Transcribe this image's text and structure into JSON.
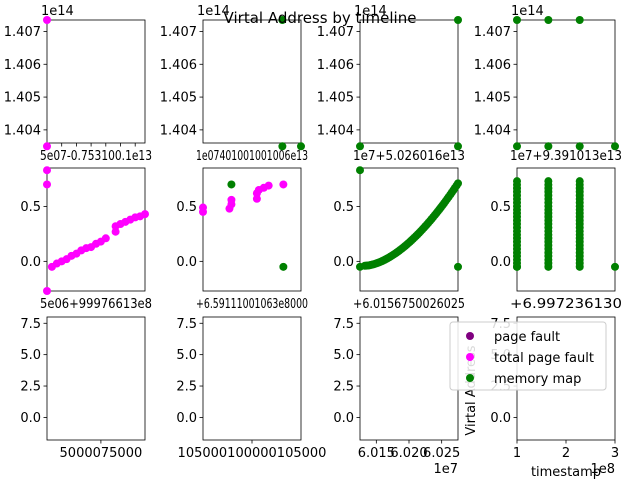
{
  "figure": {
    "suptitle": "Virtal Address by timeline",
    "colors": {
      "page_fault": "#800080",
      "total_page_fault": "#ff00ff",
      "memory_map": "#008000"
    }
  },
  "chart_data": {
    "type": "scatter",
    "grid": false,
    "legend": {
      "placement": "over-row-3-column-4",
      "entries": [
        {
          "label": "page fault",
          "color": "#800080"
        },
        {
          "label": "total page fault",
          "color": "#ff00ff"
        },
        {
          "label": "memory map",
          "color": "#008000"
        }
      ]
    },
    "panels": [
      {
        "row": 0,
        "col": 0,
        "ylim": [
          1.4036,
          1.40735
        ],
        "yticks": [
          1.404,
          1.405,
          1.406,
          1.407
        ],
        "yticklabels": [
          "1.404",
          "1.405",
          "1.406",
          "1.407"
        ],
        "yoffset": "1e14",
        "xlim": [
          0,
          1
        ],
        "xticks": [
          0.0,
          0.15,
          0.3,
          0.45,
          0.6,
          0.75,
          0.9
        ],
        "xticklabels": [
          "5e",
          "0.75",
          "1",
          "1",
          "1e13",
          "",
          ""
        ],
        "xtick_text": "5e07-0.753100.1e13",
        "points": [
          {
            "x": 0.0,
            "y": 1.40735,
            "c": "#ff00ff"
          },
          {
            "x": 0.0,
            "y": 1.4035,
            "c": "#ff00ff"
          }
        ]
      },
      {
        "row": 0,
        "col": 1,
        "ylim": [
          1.4036,
          1.40735
        ],
        "yticks": [
          1.404,
          1.405,
          1.406,
          1.407
        ],
        "yticklabels": [
          "1.404",
          "1.405",
          "1.406",
          "1.407"
        ],
        "yoffset": "1e14",
        "xlim": [
          0,
          1
        ],
        "xtick_text": "1e07401001001006e13",
        "points": [
          {
            "x": 0.81,
            "y": 1.40735,
            "c": "#008000"
          },
          {
            "x": 0.81,
            "y": 1.4035,
            "c": "#008000"
          },
          {
            "x": 1.0,
            "y": 1.4035,
            "c": "#008000"
          }
        ]
      },
      {
        "row": 0,
        "col": 2,
        "ylim": [
          1.4036,
          1.40735
        ],
        "yticks": [
          1.404,
          1.405,
          1.406,
          1.407
        ],
        "yticklabels": [
          "1.404",
          "1.405",
          "1.406",
          "1.407"
        ],
        "yoffset": "1e14",
        "xlim": [
          0,
          1
        ],
        "xtick_text": "1e7+5.026016e13",
        "points": [
          {
            "x": 1.0,
            "y": 1.40735,
            "c": "#008000"
          },
          {
            "x": 0.0,
            "y": 1.4035,
            "c": "#008000"
          },
          {
            "x": 1.0,
            "y": 1.4035,
            "c": "#008000"
          }
        ]
      },
      {
        "row": 0,
        "col": 3,
        "ylim": [
          1.4036,
          1.40735
        ],
        "yticks": [
          1.404,
          1.405,
          1.406,
          1.407
        ],
        "yticklabels": [
          "1.404",
          "1.405",
          "1.406",
          "1.407"
        ],
        "yoffset": "1e14",
        "xlim": [
          0,
          1
        ],
        "xtick_text": "1e7+9.391013e13",
        "points": [
          {
            "x": 0.0,
            "y": 1.40735,
            "c": "#008000"
          },
          {
            "x": 0.32,
            "y": 1.40735,
            "c": "#008000"
          },
          {
            "x": 0.64,
            "y": 1.40735,
            "c": "#008000"
          },
          {
            "x": 0.0,
            "y": 1.4035,
            "c": "#008000"
          },
          {
            "x": 0.32,
            "y": 1.4035,
            "c": "#008000"
          },
          {
            "x": 0.64,
            "y": 1.4035,
            "c": "#008000"
          },
          {
            "x": 1.0,
            "y": 1.4035,
            "c": "#008000"
          }
        ]
      },
      {
        "row": 1,
        "col": 0,
        "ylim": [
          -0.27,
          0.85
        ],
        "yticks": [
          0.0,
          0.5
        ],
        "yticklabels": [
          "0.0",
          "0.5"
        ],
        "xlim": [
          0,
          1
        ],
        "xtick_text": "5e06+99976613e8",
        "series": "rising",
        "points": [
          {
            "x": 0.0,
            "y": 0.83,
            "c": "#ff00ff"
          },
          {
            "x": 0.0,
            "y": 0.7,
            "c": "#ff00ff"
          },
          {
            "x": 0.0,
            "y": -0.27,
            "c": "#ff00ff"
          },
          {
            "x": 0.05,
            "y": -0.05,
            "c": "#ff00ff"
          },
          {
            "x": 0.1,
            "y": -0.02,
            "c": "#ff00ff"
          },
          {
            "x": 0.15,
            "y": 0.0,
            "c": "#ff00ff"
          },
          {
            "x": 0.2,
            "y": 0.02,
            "c": "#ff00ff"
          },
          {
            "x": 0.25,
            "y": 0.05,
            "c": "#ff00ff"
          },
          {
            "x": 0.3,
            "y": 0.07,
            "c": "#ff00ff"
          },
          {
            "x": 0.35,
            "y": 0.1,
            "c": "#ff00ff"
          },
          {
            "x": 0.4,
            "y": 0.12,
            "c": "#ff00ff"
          },
          {
            "x": 0.45,
            "y": 0.13,
            "c": "#ff00ff"
          },
          {
            "x": 0.5,
            "y": 0.16,
            "c": "#ff00ff"
          },
          {
            "x": 0.55,
            "y": 0.18,
            "c": "#ff00ff"
          },
          {
            "x": 0.6,
            "y": 0.21,
            "c": "#ff00ff"
          },
          {
            "x": 0.7,
            "y": 0.27,
            "c": "#ff00ff"
          },
          {
            "x": 0.7,
            "y": 0.32,
            "c": "#ff00ff"
          },
          {
            "x": 0.75,
            "y": 0.34,
            "c": "#ff00ff"
          },
          {
            "x": 0.8,
            "y": 0.36,
            "c": "#ff00ff"
          },
          {
            "x": 0.85,
            "y": 0.38,
            "c": "#ff00ff"
          },
          {
            "x": 0.9,
            "y": 0.4,
            "c": "#ff00ff"
          },
          {
            "x": 0.95,
            "y": 0.41,
            "c": "#ff00ff"
          },
          {
            "x": 1.0,
            "y": 0.43,
            "c": "#ff00ff"
          }
        ]
      },
      {
        "row": 1,
        "col": 1,
        "ylim": [
          -0.27,
          0.85
        ],
        "yticks": [
          0.0,
          0.5
        ],
        "yticklabels": [
          "0.0",
          "0.5"
        ],
        "xlim": [
          0,
          1
        ],
        "xtick_text": "+6.59111001063e8000",
        "points": [
          {
            "x": 0.0,
            "y": 0.45,
            "c": "#ff00ff"
          },
          {
            "x": 0.0,
            "y": 0.49,
            "c": "#ff00ff"
          },
          {
            "x": 0.29,
            "y": 0.7,
            "c": "#008000"
          },
          {
            "x": 0.27,
            "y": 0.48,
            "c": "#ff00ff"
          },
          {
            "x": 0.29,
            "y": 0.52,
            "c": "#ff00ff"
          },
          {
            "x": 0.29,
            "y": 0.56,
            "c": "#ff00ff"
          },
          {
            "x": 0.55,
            "y": 0.57,
            "c": "#ff00ff"
          },
          {
            "x": 0.55,
            "y": 0.62,
            "c": "#ff00ff"
          },
          {
            "x": 0.57,
            "y": 0.65,
            "c": "#ff00ff"
          },
          {
            "x": 0.62,
            "y": 0.67,
            "c": "#ff00ff"
          },
          {
            "x": 0.67,
            "y": 0.69,
            "c": "#ff00ff"
          },
          {
            "x": 0.82,
            "y": 0.7,
            "c": "#ff00ff"
          },
          {
            "x": 0.82,
            "y": -0.05,
            "c": "#008000"
          }
        ]
      },
      {
        "row": 1,
        "col": 2,
        "ylim": [
          -0.27,
          0.85
        ],
        "yticks": [
          0.0,
          0.5
        ],
        "yticklabels": [
          "0.0",
          "0.5"
        ],
        "xlim": [
          0,
          1
        ],
        "xtick_text": "+6.0156750026025",
        "series": "curve",
        "points": [
          {
            "x": 0.0,
            "y": 0.83,
            "c": "#008000"
          },
          {
            "x": 0.0,
            "y": -0.05,
            "c": "#008000"
          },
          {
            "x": 1.0,
            "y": -0.05,
            "c": "#008000"
          }
        ]
      },
      {
        "row": 1,
        "col": 3,
        "ylim": [
          -0.27,
          0.85
        ],
        "yticks": [
          0.0,
          0.5
        ],
        "yticklabels": [
          "0.0",
          "0.5"
        ],
        "xlim": [
          0,
          1
        ],
        "xtick_text": "+6.997236130",
        "series": "columns",
        "points": [
          {
            "x": 0.0,
            "y": -0.05,
            "c": "#008000"
          },
          {
            "x": 1.0,
            "y": -0.05,
            "c": "#008000"
          }
        ]
      },
      {
        "row": 2,
        "col": 0,
        "ylim": [
          -1.8,
          8.0
        ],
        "yticks": [
          0.0,
          2.5,
          5.0,
          7.5
        ],
        "yticklabels": [
          "0.0",
          "2.5",
          "5.0",
          "7.5"
        ],
        "xlim": [
          0,
          1
        ],
        "xticks": [
          0.55
        ],
        "xticklabels": [
          "5000075000"
        ],
        "points": []
      },
      {
        "row": 2,
        "col": 1,
        "ylim": [
          -1.8,
          8.0
        ],
        "yticks": [
          0.0,
          2.5,
          5.0,
          7.5
        ],
        "yticklabels": [
          "0.0",
          "2.5",
          "5.0",
          "7.5"
        ],
        "xlim": [
          0,
          1
        ],
        "xticks": [
          0.5
        ],
        "xticklabels": [
          "105000100000105000"
        ],
        "points": []
      },
      {
        "row": 2,
        "col": 2,
        "ylim": [
          -1.8,
          8.0
        ],
        "yticks": [
          0.0,
          2.5,
          5.0,
          7.5
        ],
        "yticklabels": [
          "0.0",
          "2.5",
          "5.0",
          "7.5"
        ],
        "xlim": [
          6.0125,
          6.0275
        ],
        "xticks": [
          6.015,
          6.02,
          6.025
        ],
        "xticklabels": [
          "6.015",
          "6.020",
          "6.025"
        ],
        "xoffset": "1e7",
        "points": []
      },
      {
        "row": 2,
        "col": 3,
        "ylim": [
          -1.8,
          8.0
        ],
        "yticks": [
          0.0,
          2.5,
          5.0,
          7.5
        ],
        "yticklabels": [
          "0.0",
          "2.5",
          "5.0",
          "7.5"
        ],
        "xlim": [
          1.0,
          3.0
        ],
        "xticks": [
          1,
          2,
          3
        ],
        "xticklabels": [
          "1",
          "2",
          "3"
        ],
        "xoffset": "1e8",
        "xlabel": "timestamp",
        "ylabel": "Virtal Address",
        "points": []
      }
    ]
  }
}
